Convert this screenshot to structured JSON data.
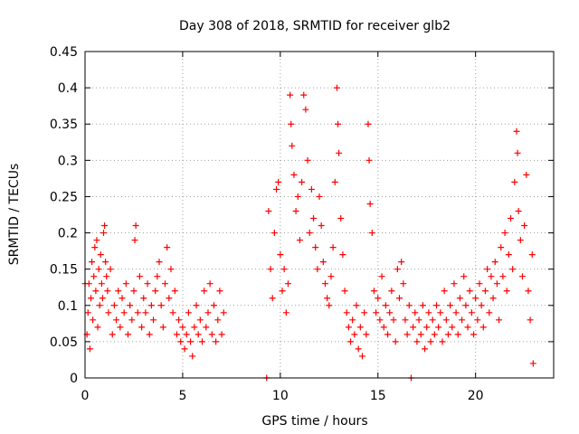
{
  "chart_data": {
    "type": "scatter",
    "title": "Day 308 of 2018, SRMTID for receiver glb2",
    "xlabel": "GPS time / hours",
    "ylabel": "SRMTID / TECUs",
    "xlim": [
      0,
      24
    ],
    "ylim": [
      0,
      0.45
    ],
    "x_ticks": [
      0,
      5,
      10,
      15,
      20
    ],
    "x_tick_labels": [
      "0",
      "5",
      "10",
      "15",
      "20"
    ],
    "y_ticks": [
      0,
      0.05,
      0.1,
      0.15,
      0.2,
      0.25,
      0.3,
      0.35,
      0.4,
      0.45
    ],
    "y_tick_labels": [
      "0",
      "0.05",
      "0.1",
      "0.15",
      "0.2",
      "0.25",
      "0.3",
      "0.35",
      "0.4",
      "0.45"
    ],
    "grid": true,
    "marker": "plus",
    "color": "#ff0000",
    "series": [
      {
        "name": "SRMTID",
        "points": [
          [
            0.0,
            0.13
          ],
          [
            0.1,
            0.06
          ],
          [
            0.15,
            0.09
          ],
          [
            0.2,
            0.13
          ],
          [
            0.25,
            0.04
          ],
          [
            0.3,
            0.11
          ],
          [
            0.35,
            0.16
          ],
          [
            0.4,
            0.08
          ],
          [
            0.45,
            0.14
          ],
          [
            0.5,
            0.18
          ],
          [
            0.55,
            0.12
          ],
          [
            0.6,
            0.19
          ],
          [
            0.65,
            0.07
          ],
          [
            0.7,
            0.15
          ],
          [
            0.75,
            0.1
          ],
          [
            0.8,
            0.17
          ],
          [
            0.85,
            0.13
          ],
          [
            0.9,
            0.11
          ],
          [
            0.95,
            0.2
          ],
          [
            1.0,
            0.21
          ],
          [
            1.05,
            0.16
          ],
          [
            1.1,
            0.14
          ],
          [
            1.15,
            0.12
          ],
          [
            1.2,
            0.09
          ],
          [
            1.3,
            0.15
          ],
          [
            1.4,
            0.06
          ],
          [
            1.5,
            0.1
          ],
          [
            1.6,
            0.08
          ],
          [
            1.7,
            0.12
          ],
          [
            1.8,
            0.07
          ],
          [
            1.9,
            0.11
          ],
          [
            2.0,
            0.09
          ],
          [
            2.1,
            0.13
          ],
          [
            2.2,
            0.06
          ],
          [
            2.3,
            0.1
          ],
          [
            2.4,
            0.08
          ],
          [
            2.5,
            0.12
          ],
          [
            2.55,
            0.19
          ],
          [
            2.6,
            0.21
          ],
          [
            2.7,
            0.09
          ],
          [
            2.8,
            0.14
          ],
          [
            2.9,
            0.07
          ],
          [
            3.0,
            0.11
          ],
          [
            3.1,
            0.09
          ],
          [
            3.2,
            0.13
          ],
          [
            3.3,
            0.06
          ],
          [
            3.4,
            0.1
          ],
          [
            3.5,
            0.08
          ],
          [
            3.6,
            0.12
          ],
          [
            3.7,
            0.14
          ],
          [
            3.8,
            0.16
          ],
          [
            3.9,
            0.1
          ],
          [
            4.0,
            0.07
          ],
          [
            4.1,
            0.13
          ],
          [
            4.2,
            0.18
          ],
          [
            4.3,
            0.11
          ],
          [
            4.4,
            0.15
          ],
          [
            4.5,
            0.09
          ],
          [
            4.6,
            0.12
          ],
          [
            4.7,
            0.06
          ],
          [
            4.8,
            0.08
          ],
          [
            4.9,
            0.05
          ],
          [
            5.0,
            0.07
          ],
          [
            5.1,
            0.04
          ],
          [
            5.2,
            0.06
          ],
          [
            5.3,
            0.09
          ],
          [
            5.4,
            0.05
          ],
          [
            5.5,
            0.03
          ],
          [
            5.6,
            0.07
          ],
          [
            5.7,
            0.1
          ],
          [
            5.8,
            0.06
          ],
          [
            5.9,
            0.08
          ],
          [
            6.0,
            0.05
          ],
          [
            6.1,
            0.12
          ],
          [
            6.2,
            0.07
          ],
          [
            6.3,
            0.09
          ],
          [
            6.4,
            0.13
          ],
          [
            6.5,
            0.06
          ],
          [
            6.6,
            0.1
          ],
          [
            6.7,
            0.05
          ],
          [
            6.8,
            0.08
          ],
          [
            6.9,
            0.12
          ],
          [
            7.0,
            0.06
          ],
          [
            7.1,
            0.09
          ],
          [
            9.3,
            0.0
          ],
          [
            9.4,
            0.23
          ],
          [
            9.5,
            0.15
          ],
          [
            9.6,
            0.11
          ],
          [
            9.7,
            0.2
          ],
          [
            9.8,
            0.26
          ],
          [
            9.9,
            0.27
          ],
          [
            10.0,
            0.17
          ],
          [
            10.1,
            0.12
          ],
          [
            10.2,
            0.15
          ],
          [
            10.3,
            0.09
          ],
          [
            10.4,
            0.13
          ],
          [
            10.5,
            0.39
          ],
          [
            10.55,
            0.35
          ],
          [
            10.6,
            0.32
          ],
          [
            10.7,
            0.28
          ],
          [
            10.8,
            0.23
          ],
          [
            10.9,
            0.25
          ],
          [
            11.0,
            0.19
          ],
          [
            11.1,
            0.27
          ],
          [
            11.2,
            0.39
          ],
          [
            11.3,
            0.37
          ],
          [
            11.4,
            0.3
          ],
          [
            11.5,
            0.2
          ],
          [
            11.6,
            0.26
          ],
          [
            11.7,
            0.22
          ],
          [
            11.8,
            0.18
          ],
          [
            11.9,
            0.15
          ],
          [
            12.0,
            0.25
          ],
          [
            12.1,
            0.21
          ],
          [
            12.2,
            0.16
          ],
          [
            12.3,
            0.13
          ],
          [
            12.4,
            0.11
          ],
          [
            12.5,
            0.1
          ],
          [
            12.6,
            0.14
          ],
          [
            12.7,
            0.18
          ],
          [
            12.8,
            0.27
          ],
          [
            12.9,
            0.4
          ],
          [
            12.95,
            0.35
          ],
          [
            13.0,
            0.31
          ],
          [
            13.1,
            0.22
          ],
          [
            13.2,
            0.17
          ],
          [
            13.3,
            0.12
          ],
          [
            13.4,
            0.09
          ],
          [
            13.5,
            0.07
          ],
          [
            13.6,
            0.05
          ],
          [
            13.7,
            0.08
          ],
          [
            13.8,
            0.06
          ],
          [
            13.9,
            0.1
          ],
          [
            14.0,
            0.04
          ],
          [
            14.1,
            0.07
          ],
          [
            14.2,
            0.03
          ],
          [
            14.3,
            0.09
          ],
          [
            14.4,
            0.06
          ],
          [
            14.5,
            0.35
          ],
          [
            14.55,
            0.3
          ],
          [
            14.6,
            0.24
          ],
          [
            14.7,
            0.2
          ],
          [
            14.8,
            0.12
          ],
          [
            14.9,
            0.09
          ],
          [
            15.0,
            0.11
          ],
          [
            15.1,
            0.08
          ],
          [
            15.2,
            0.14
          ],
          [
            15.3,
            0.07
          ],
          [
            15.4,
            0.1
          ],
          [
            15.5,
            0.06
          ],
          [
            15.6,
            0.09
          ],
          [
            15.7,
            0.12
          ],
          [
            15.8,
            0.08
          ],
          [
            15.9,
            0.05
          ],
          [
            16.0,
            0.15
          ],
          [
            16.1,
            0.11
          ],
          [
            16.2,
            0.16
          ],
          [
            16.3,
            0.13
          ],
          [
            16.4,
            0.08
          ],
          [
            16.5,
            0.06
          ],
          [
            16.6,
            0.1
          ],
          [
            16.7,
            0.0
          ],
          [
            16.8,
            0.07
          ],
          [
            16.9,
            0.09
          ],
          [
            17.0,
            0.05
          ],
          [
            17.1,
            0.08
          ],
          [
            17.2,
            0.06
          ],
          [
            17.3,
            0.1
          ],
          [
            17.4,
            0.04
          ],
          [
            17.5,
            0.07
          ],
          [
            17.6,
            0.09
          ],
          [
            17.7,
            0.05
          ],
          [
            17.8,
            0.08
          ],
          [
            17.9,
            0.06
          ],
          [
            18.0,
            0.1
          ],
          [
            18.1,
            0.07
          ],
          [
            18.2,
            0.09
          ],
          [
            18.3,
            0.05
          ],
          [
            18.4,
            0.12
          ],
          [
            18.5,
            0.08
          ],
          [
            18.6,
            0.06
          ],
          [
            18.7,
            0.1
          ],
          [
            18.8,
            0.07
          ],
          [
            18.9,
            0.13
          ],
          [
            19.0,
            0.09
          ],
          [
            19.1,
            0.06
          ],
          [
            19.2,
            0.11
          ],
          [
            19.3,
            0.08
          ],
          [
            19.4,
            0.14
          ],
          [
            19.5,
            0.1
          ],
          [
            19.6,
            0.07
          ],
          [
            19.7,
            0.12
          ],
          [
            19.8,
            0.09
          ],
          [
            19.9,
            0.06
          ],
          [
            20.0,
            0.11
          ],
          [
            20.1,
            0.08
          ],
          [
            20.2,
            0.13
          ],
          [
            20.3,
            0.1
          ],
          [
            20.4,
            0.07
          ],
          [
            20.5,
            0.12
          ],
          [
            20.6,
            0.15
          ],
          [
            20.7,
            0.09
          ],
          [
            20.8,
            0.14
          ],
          [
            20.9,
            0.11
          ],
          [
            21.0,
            0.16
          ],
          [
            21.1,
            0.13
          ],
          [
            21.2,
            0.08
          ],
          [
            21.3,
            0.18
          ],
          [
            21.4,
            0.14
          ],
          [
            21.5,
            0.2
          ],
          [
            21.6,
            0.12
          ],
          [
            21.7,
            0.17
          ],
          [
            21.8,
            0.22
          ],
          [
            21.9,
            0.15
          ],
          [
            22.0,
            0.27
          ],
          [
            22.1,
            0.34
          ],
          [
            22.15,
            0.31
          ],
          [
            22.2,
            0.23
          ],
          [
            22.3,
            0.19
          ],
          [
            22.4,
            0.14
          ],
          [
            22.5,
            0.21
          ],
          [
            22.6,
            0.28
          ],
          [
            22.7,
            0.12
          ],
          [
            22.8,
            0.08
          ],
          [
            22.9,
            0.17
          ],
          [
            22.95,
            0.02
          ]
        ]
      }
    ]
  }
}
